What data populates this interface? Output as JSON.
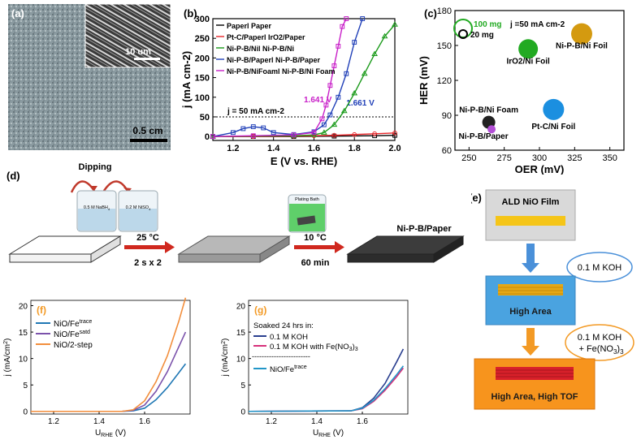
{
  "panel_a": {
    "label": "(a)",
    "inset_scale": "10 um",
    "scale": "0.5 cm"
  },
  "panel_b": {
    "label": "(b)",
    "annot_j": "j = 50 mA cm",
    "annot_j_sup": "-2",
    "annot_v1": "1.641 V",
    "annot_v2": "1.661 V"
  },
  "panel_c": {
    "label": "(c)",
    "legend_100": "100 mg",
    "legend_20": "20 mg",
    "annot_j": "j =50 mA cm",
    "annot_j_sup": "-2"
  },
  "panel_d": {
    "label": "(d)",
    "dipping": "Dipping",
    "beaker1": "0.5 M NaBH",
    "beaker1_sub": "4",
    "beaker2": "0.2 M NiSO",
    "beaker2_sub": "4",
    "plating": "Plating Bath",
    "step1_top": "25 °C",
    "step1_bottom": "2 s x 2",
    "step2_top": "10 °C",
    "step2_bottom": "60 min",
    "product": "Ni-P-B/Paper"
  },
  "panel_e": {
    "label": "(e)",
    "box1": "ALD NiO Film",
    "box2": "High Area",
    "box3": "High Area, High TOF",
    "cond1": "0.1 M KOH",
    "cond2_line1": "0.1 M KOH",
    "cond2_line2": "+ Fe(NO",
    "cond2_sub": "3",
    "cond2_end": ")",
    "cond2_sub2": "3"
  },
  "panel_g_text": {
    "soaked": "Soaked 24 hrs in:",
    "divider": "------------------------"
  },
  "colors": {
    "hrv_black": "#000000",
    "red": "#e8262a",
    "green": "#1a9a1a",
    "blue": "#2140b8",
    "magenta": "#c81fc8",
    "iro2": "#22aa22",
    "ptc": "#1b8fe0",
    "nipb_foil": "#d49a10",
    "nipb_paper": "#b34fd6",
    "f_teal": "#1f77b4",
    "f_purple": "#7b52ab",
    "f_orange": "#f28e3c",
    "g_navy": "#2a3f8f",
    "g_pink": "#d6307a",
    "g_teal": "#2296c8",
    "e_box_blue": "#4aa3e0",
    "e_box_orange": "#f7941d",
    "e_arrow_orange": "#f39a25"
  },
  "chart_data": [
    {
      "type": "line",
      "panel": "b",
      "xlabel": "E (V vs. RHE)",
      "ylabel": "j (mA cm-2)",
      "xlim": [
        1.1,
        2.0
      ],
      "ylim": [
        -10,
        300
      ],
      "xticks": [
        "1.2",
        "1.4",
        "1.6",
        "1.8",
        "2.0"
      ],
      "yticks": [
        "0",
        "50",
        "100",
        "150",
        "200",
        "250",
        "300"
      ],
      "legend": [
        "Paperl Paper",
        "Pt-C/Paperl IrO2/Paper",
        "Ni-P-B/Nil Ni-P-B/Ni",
        "Ni-P-B/Paperl Ni-P-B/Paper",
        "Ni-P-B/NiFoaml Ni-P-B/Ni Foam"
      ],
      "series": [
        {
          "name": "Paperl Paper",
          "x": [
            1.1,
            1.3,
            1.5,
            1.7,
            1.9,
            2.0
          ],
          "y": [
            0,
            0,
            0,
            1,
            2,
            3
          ]
        },
        {
          "name": "Pt-C/Paperl IrO2/Paper",
          "x": [
            1.1,
            1.3,
            1.5,
            1.6,
            1.7,
            1.8,
            1.9,
            2.0
          ],
          "y": [
            0,
            0,
            1,
            2,
            3,
            5,
            7,
            9
          ]
        },
        {
          "name": "Ni-P-B/Nil Ni-P-B/Ni",
          "x": [
            1.1,
            1.5,
            1.6,
            1.65,
            1.7,
            1.75,
            1.8,
            1.85,
            1.9,
            1.95,
            2.0
          ],
          "y": [
            0,
            2,
            4,
            10,
            30,
            65,
            110,
            160,
            210,
            255,
            285
          ]
        },
        {
          "name": "Ni-P-B/Paperl Ni-P-B/Paper",
          "x": [
            1.1,
            1.2,
            1.25,
            1.3,
            1.35,
            1.4,
            1.5,
            1.6,
            1.65,
            1.68,
            1.72,
            1.76,
            1.8,
            1.84
          ],
          "y": [
            0,
            10,
            20,
            25,
            22,
            10,
            5,
            12,
            30,
            55,
            100,
            160,
            240,
            310
          ]
        },
        {
          "name": "Ni-P-B/NiFoaml Ni-P-B/Ni Foam",
          "x": [
            1.1,
            1.3,
            1.5,
            1.6,
            1.64,
            1.66,
            1.68,
            1.7,
            1.72,
            1.74,
            1.76
          ],
          "y": [
            0,
            2,
            4,
            10,
            45,
            80,
            130,
            180,
            230,
            280,
            310
          ]
        }
      ],
      "hline": 50
    },
    {
      "type": "scatter",
      "panel": "c",
      "xlabel": "OER (mV)",
      "ylabel": "HER (mV)",
      "xlim": [
        240,
        360
      ],
      "ylim": [
        60,
        180
      ],
      "xticks": [
        "250",
        "275",
        "300",
        "325",
        "350"
      ],
      "yticks": [
        "60",
        "90",
        "120",
        "150",
        "180"
      ],
      "points": [
        {
          "label": "IrO2/Ni Foil",
          "x": 292,
          "y": 147
        },
        {
          "label": "Ni-P-B/Ni Foil",
          "x": 330,
          "y": 160
        },
        {
          "label": "Pt-C/Ni Foil",
          "x": 310,
          "y": 95
        },
        {
          "label": "Ni-P-B/Ni Foam",
          "x": 264,
          "y": 84
        },
        {
          "label": "Ni-P-B/Paper",
          "x": 266,
          "y": 78
        }
      ]
    },
    {
      "type": "line",
      "panel": "f",
      "label": "(f)",
      "xlabel": "U",
      "xlabel_sub": "RHE",
      "xlabel_end": "(V)",
      "ylabel": "j (mA/cm",
      "ylabel_sup": "2",
      "ylabel_end": ")",
      "xlim": [
        1.1,
        1.8
      ],
      "ylim": [
        -0.5,
        21
      ],
      "xticks": [
        "1.2",
        "1.4",
        "1.6"
      ],
      "yticks": [
        "0",
        "5",
        "10",
        "15",
        "20"
      ],
      "series": [
        {
          "name": "NiO/Fe",
          "name_sup": "trace",
          "x": [
            1.1,
            1.5,
            1.55,
            1.6,
            1.65,
            1.7,
            1.75,
            1.78
          ],
          "y": [
            0,
            0,
            0.1,
            0.6,
            2.2,
            4.5,
            7.3,
            9.0
          ]
        },
        {
          "name": "NiO/Fe",
          "name_sup": "satd",
          "x": [
            1.1,
            1.5,
            1.55,
            1.6,
            1.65,
            1.7,
            1.75,
            1.78
          ],
          "y": [
            0,
            0,
            0.2,
            1.2,
            3.8,
            7.5,
            12.2,
            15.0
          ]
        },
        {
          "name": "NiO/2-step",
          "x": [
            1.1,
            1.5,
            1.55,
            1.6,
            1.65,
            1.7,
            1.75,
            1.78
          ],
          "y": [
            0,
            0,
            0.3,
            2.0,
            5.6,
            10.5,
            17.0,
            21.5
          ]
        }
      ]
    },
    {
      "type": "line",
      "panel": "g",
      "label": "(g)",
      "xlabel": "U",
      "xlabel_sub": "RHE",
      "xlabel_end": "(V)",
      "ylabel": "j (mA/cm",
      "ylabel_sup": "2",
      "ylabel_end": ")",
      "xlim": [
        1.1,
        1.8
      ],
      "ylim": [
        -0.5,
        21
      ],
      "xticks": [
        "1.2",
        "1.4",
        "1.6"
      ],
      "yticks": [
        "0",
        "5",
        "10",
        "15",
        "20"
      ],
      "series": [
        {
          "name": "0.1 M KOH",
          "x": [
            1.1,
            1.55,
            1.6,
            1.65,
            1.7,
            1.75,
            1.78
          ],
          "y": [
            0,
            0.1,
            0.7,
            2.5,
            5.3,
            9.3,
            11.8
          ]
        },
        {
          "name": "0.1 M KOH with Fe(NO",
          "name_sub": "3",
          "name_end": ")",
          "name_sub2": "3",
          "x": [
            1.1,
            1.55,
            1.6,
            1.65,
            1.7,
            1.75,
            1.78
          ],
          "y": [
            0,
            0.1,
            0.5,
            1.9,
            4.0,
            6.5,
            8.2
          ]
        },
        {
          "name": "NiO/Fe",
          "name_sup": "trace",
          "x": [
            1.1,
            1.55,
            1.6,
            1.65,
            1.7,
            1.75,
            1.78
          ],
          "y": [
            0,
            0.1,
            0.6,
            2.1,
            4.3,
            6.9,
            8.6
          ]
        }
      ]
    }
  ]
}
